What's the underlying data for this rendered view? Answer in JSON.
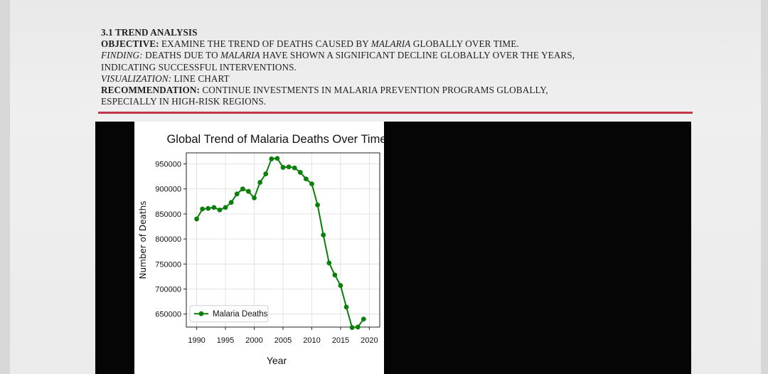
{
  "slide": {
    "section_title": "3.1 TREND ANALYSIS",
    "objective_label": "OBJECTIVE:",
    "objective_pre": " EXAMINE THE TREND OF DEATHS CAUSED BY ",
    "objective_em": "MALARIA",
    "objective_post": " GLOBALLY OVER TIME.",
    "finding_label": "FINDING:",
    "finding_pre": " DEATHS DUE TO ",
    "finding_em": "MALARIA",
    "finding_post": " HAVE SHOWN A SIGNIFICANT DECLINE GLOBALLY OVER THE YEARS,",
    "finding_line2": "INDICATING SUCCESSFUL INTERVENTIONS.",
    "visualization_label": "VISUALIZATION:",
    "visualization_value": " LINE CHART",
    "recommendation_label": "RECOMMENDATION:",
    "recommendation_line1": " CONTINUE INVESTMENTS IN MALARIA PREVENTION PROGRAMS GLOBALLY,",
    "recommendation_line2": "ESPECIALLY IN HIGH-RISK REGIONS.",
    "rule_color": "#c2374a"
  },
  "chart_data": {
    "type": "line",
    "title": "Global Trend of Malaria Deaths Over Time",
    "xlabel": "Year",
    "ylabel": "Number of Deaths",
    "xlim": [
      1988.2,
      2021.8
    ],
    "ylim": [
      624000,
      972000
    ],
    "xticks": [
      1990,
      1995,
      2000,
      2005,
      2010,
      2015,
      2020
    ],
    "yticks": [
      650000,
      700000,
      750000,
      800000,
      850000,
      900000,
      950000
    ],
    "grid": true,
    "legend_position": "lower-left",
    "line_color": "#0a7f0a",
    "series": [
      {
        "name": "Malaria Deaths",
        "x": [
          1990,
          1991,
          1992,
          1993,
          1994,
          1995,
          1996,
          1997,
          1998,
          1999,
          2000,
          2001,
          2002,
          2003,
          2004,
          2005,
          2006,
          2007,
          2008,
          2009,
          2010,
          2011,
          2012,
          2013,
          2014,
          2015,
          2016,
          2017,
          2018,
          2019
        ],
        "y": [
          840000,
          860000,
          861000,
          863000,
          858000,
          863000,
          873000,
          890000,
          900000,
          895000,
          882000,
          913000,
          930000,
          960000,
          961000,
          943000,
          944000,
          942000,
          933000,
          920000,
          910000,
          868000,
          808000,
          752000,
          728000,
          707000,
          664000,
          623000,
          624000,
          640000
        ]
      }
    ]
  }
}
